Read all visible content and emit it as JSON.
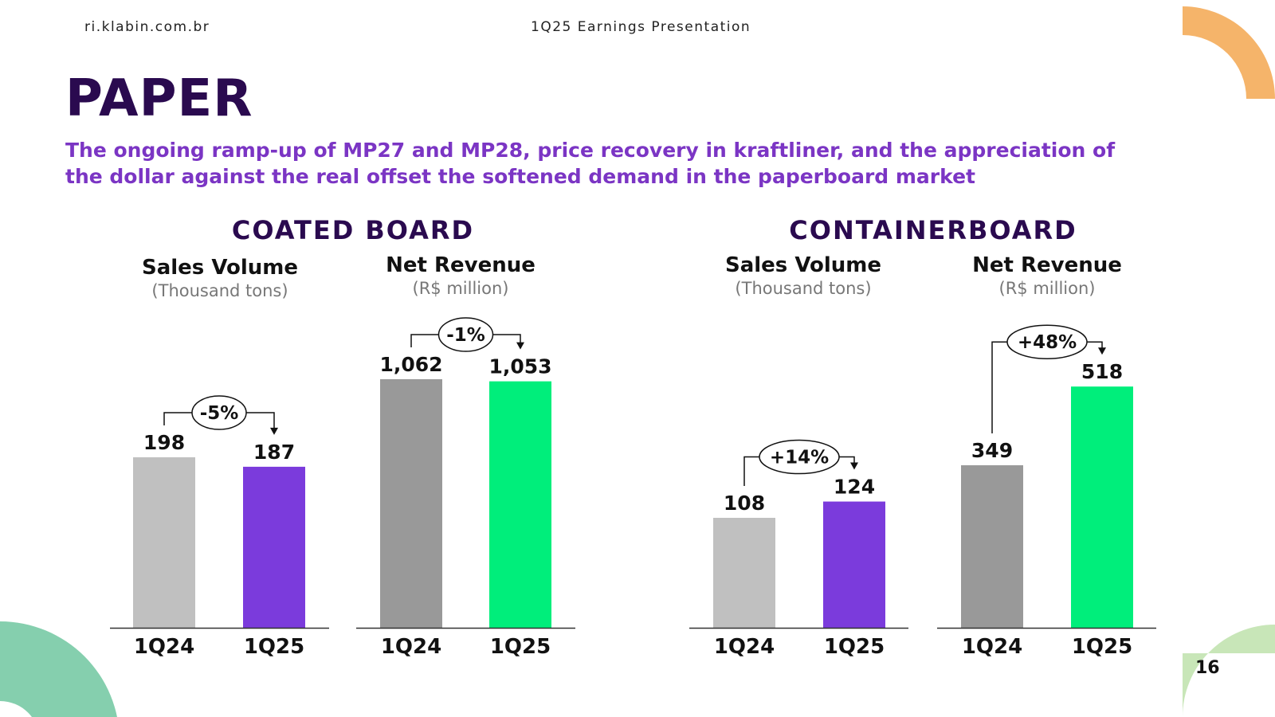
{
  "header": {
    "site": "ri.klabin.com.br",
    "presentation": "1Q25 Earnings Presentation"
  },
  "page": {
    "title": "PAPER",
    "subtitle": "The ongoing ramp-up of MP27 and MP28, price recovery in kraftliner, and the appreciation of the dollar against the real offset the softened demand in the paperboard market",
    "number": "16"
  },
  "colors": {
    "title": "#2a0a4f",
    "subtitle": "#7b35c4",
    "light_gray": "#c0c0c0",
    "dark_gray": "#999999",
    "purple": "#7b3bdc",
    "green": "#00ee7b",
    "deco_orange": "#f5b46a",
    "deco_teal": "#85cfae",
    "deco_lightgreen": "#c8e6b8"
  },
  "chart_data": [
    {
      "type": "bar",
      "section": "COATED BOARD",
      "title": "Sales Volume",
      "unit": "(Thousand tons)",
      "categories": [
        "1Q24",
        "1Q25"
      ],
      "values": [
        198,
        187
      ],
      "labels": [
        "198",
        "187"
      ],
      "variation": "-5%",
      "colors": [
        "#c0c0c0",
        "#7b3bdc"
      ]
    },
    {
      "type": "bar",
      "section": "COATED BOARD",
      "title": "Net Revenue",
      "unit": "(R$ million)",
      "categories": [
        "1Q24",
        "1Q25"
      ],
      "values": [
        1062,
        1053
      ],
      "labels": [
        "1,062",
        "1,053"
      ],
      "variation": "-1%",
      "colors": [
        "#999999",
        "#00ee7b"
      ]
    },
    {
      "type": "bar",
      "section": "CONTAINERBOARD",
      "title": "Sales Volume",
      "unit": "(Thousand tons)",
      "categories": [
        "1Q24",
        "1Q25"
      ],
      "values": [
        108,
        124
      ],
      "labels": [
        "108",
        "124"
      ],
      "variation": "+14%",
      "colors": [
        "#c0c0c0",
        "#7b3bdc"
      ]
    },
    {
      "type": "bar",
      "section": "CONTAINERBOARD",
      "title": "Net Revenue",
      "unit": "(R$ million)",
      "categories": [
        "1Q24",
        "1Q25"
      ],
      "values": [
        349,
        518
      ],
      "labels": [
        "349",
        "518"
      ],
      "variation": "+48%",
      "colors": [
        "#999999",
        "#00ee7b"
      ]
    }
  ]
}
